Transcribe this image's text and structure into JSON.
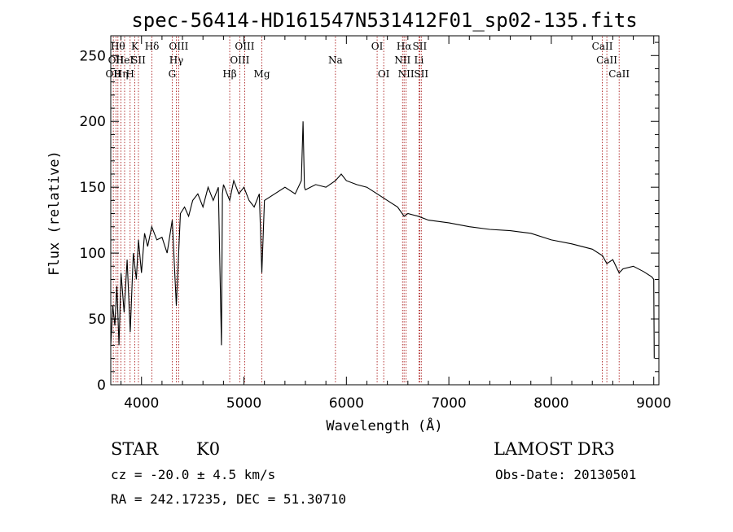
{
  "chart_data": {
    "type": "line",
    "title": "spec-56414-HD161547N531412F01_sp02-135.fits",
    "xlabel": "Wavelength (Å)",
    "ylabel": "Flux (relative)",
    "xlim": [
      3700,
      9050
    ],
    "ylim": [
      0,
      265
    ],
    "xticks": [
      4000,
      5000,
      6000,
      7000,
      8000,
      9000
    ],
    "xtick_labels": [
      "4000",
      "5000",
      "6000",
      "7000",
      "8000",
      "9000"
    ],
    "yticks": [
      0,
      50,
      100,
      150,
      200,
      250
    ],
    "ytick_labels": [
      "0",
      "50",
      "100",
      "150",
      "200",
      "250"
    ],
    "series": [
      {
        "name": "flux",
        "x": [
          3700,
          3720,
          3740,
          3760,
          3780,
          3800,
          3830,
          3860,
          3890,
          3920,
          3950,
          3970,
          4000,
          4030,
          4060,
          4100,
          4150,
          4200,
          4250,
          4300,
          4340,
          4380,
          4420,
          4460,
          4500,
          4550,
          4600,
          4650,
          4700,
          4750,
          4780,
          4790,
          4800,
          4861,
          4900,
          4950,
          5000,
          5050,
          5100,
          5150,
          5175,
          5200,
          5300,
          5400,
          5500,
          5560,
          5577,
          5590,
          5600,
          5700,
          5800,
          5893,
          5950,
          6000,
          6100,
          6200,
          6300,
          6400,
          6500,
          6563,
          6600,
          6700,
          6800,
          7000,
          7200,
          7400,
          7600,
          7800,
          8000,
          8200,
          8400,
          8500,
          8542,
          8600,
          8662,
          8700,
          8800,
          8900,
          8980,
          9000,
          9005
        ],
        "y": [
          30,
          60,
          45,
          75,
          30,
          85,
          55,
          95,
          40,
          100,
          80,
          110,
          85,
          115,
          105,
          120,
          110,
          112,
          100,
          125,
          60,
          130,
          135,
          128,
          140,
          145,
          135,
          150,
          140,
          150,
          30,
          145,
          152,
          140,
          155,
          145,
          150,
          140,
          135,
          145,
          85,
          140,
          145,
          150,
          145,
          155,
          200,
          150,
          148,
          152,
          150,
          155,
          160,
          155,
          152,
          150,
          145,
          140,
          135,
          128,
          130,
          128,
          125,
          123,
          120,
          118,
          117,
          115,
          110,
          107,
          103,
          98,
          92,
          95,
          85,
          88,
          90,
          86,
          82,
          80,
          20
        ]
      }
    ],
    "spectral_lines": [
      {
        "x": 3725,
        "row": 2,
        "label": "OII"
      },
      {
        "x": 3750,
        "row": 1,
        "label": "OII"
      },
      {
        "x": 3770,
        "row": 0,
        "label": "Hθ"
      },
      {
        "x": 3800,
        "row": 2,
        "label": "Hη"
      },
      {
        "x": 3835,
        "row": 1,
        "label": "HeI"
      },
      {
        "x": 3889,
        "row": 2,
        "label": "H"
      },
      {
        "x": 3934,
        "row": 0,
        "label": "K"
      },
      {
        "x": 3970,
        "row": 1,
        "label": "SII"
      },
      {
        "x": 4102,
        "row": 0,
        "label": "Hδ"
      },
      {
        "x": 4300,
        "row": 2,
        "label": "G"
      },
      {
        "x": 4340,
        "row": 1,
        "label": "Hγ"
      },
      {
        "x": 4363,
        "row": 0,
        "label": "OIII"
      },
      {
        "x": 4861,
        "row": 2,
        "label": "Hβ"
      },
      {
        "x": 4959,
        "row": 1,
        "label": "OIII"
      },
      {
        "x": 5007,
        "row": 0,
        "label": "OIII"
      },
      {
        "x": 5175,
        "row": 2,
        "label": "Mg"
      },
      {
        "x": 5893,
        "row": 1,
        "label": "Na"
      },
      {
        "x": 6300,
        "row": 0,
        "label": "OI"
      },
      {
        "x": 6364,
        "row": 2,
        "label": "OI"
      },
      {
        "x": 6548,
        "row": 1,
        "label": "NII"
      },
      {
        "x": 6563,
        "row": 0,
        "label": "Hα"
      },
      {
        "x": 6583,
        "row": 2,
        "label": "NII"
      },
      {
        "x": 6708,
        "row": 1,
        "label": "Li"
      },
      {
        "x": 6716,
        "row": 0,
        "label": "SII"
      },
      {
        "x": 6731,
        "row": 2,
        "label": "SII"
      },
      {
        "x": 8498,
        "row": 0,
        "label": "CaII"
      },
      {
        "x": 8542,
        "row": 1,
        "label": "CaII"
      },
      {
        "x": 8662,
        "row": 2,
        "label": "CaII"
      }
    ]
  },
  "info": {
    "object_class": "STAR",
    "subclass": "K0",
    "survey": "LAMOST DR3",
    "redshift": "cz = -20.0 ± 4.5 km/s",
    "obs_date": "Obs-Date: 20130501",
    "coords": "RA = 242.17235, DEC =  51.30710"
  },
  "colors": {
    "line_marker": "#a00000",
    "spectrum": "#000000",
    "axes": "#000000"
  }
}
